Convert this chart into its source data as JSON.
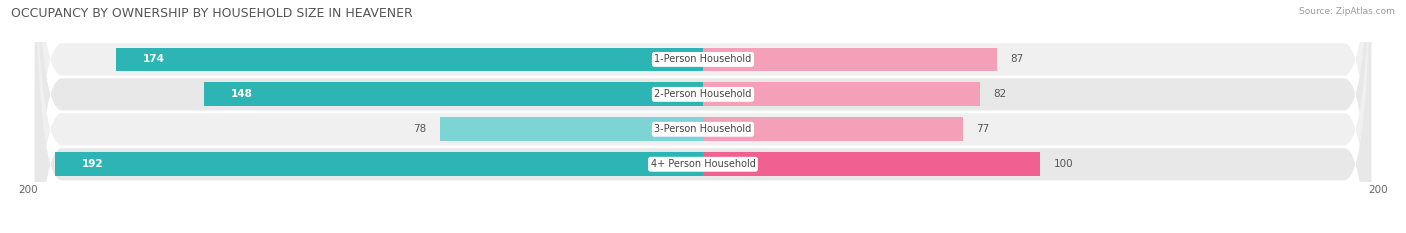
{
  "title": "OCCUPANCY BY OWNERSHIP BY HOUSEHOLD SIZE IN HEAVENER",
  "source": "Source: ZipAtlas.com",
  "categories": [
    "1-Person Household",
    "2-Person Household",
    "3-Person Household",
    "4+ Person Household"
  ],
  "owner_values": [
    174,
    148,
    78,
    192
  ],
  "renter_values": [
    87,
    82,
    77,
    100
  ],
  "owner_color_dark": "#2db5b5",
  "owner_color_light": "#7dd4d4",
  "renter_color_dark": "#f06090",
  "renter_color_light": "#f4a0b8",
  "row_bg_colors": [
    "#f0f0f0",
    "#e8e8e8",
    "#f0f0f0",
    "#e8e8e8"
  ],
  "axis_max": 200,
  "title_fontsize": 9,
  "label_fontsize": 7.5,
  "tick_fontsize": 7.5,
  "fig_bg": "#ffffff"
}
